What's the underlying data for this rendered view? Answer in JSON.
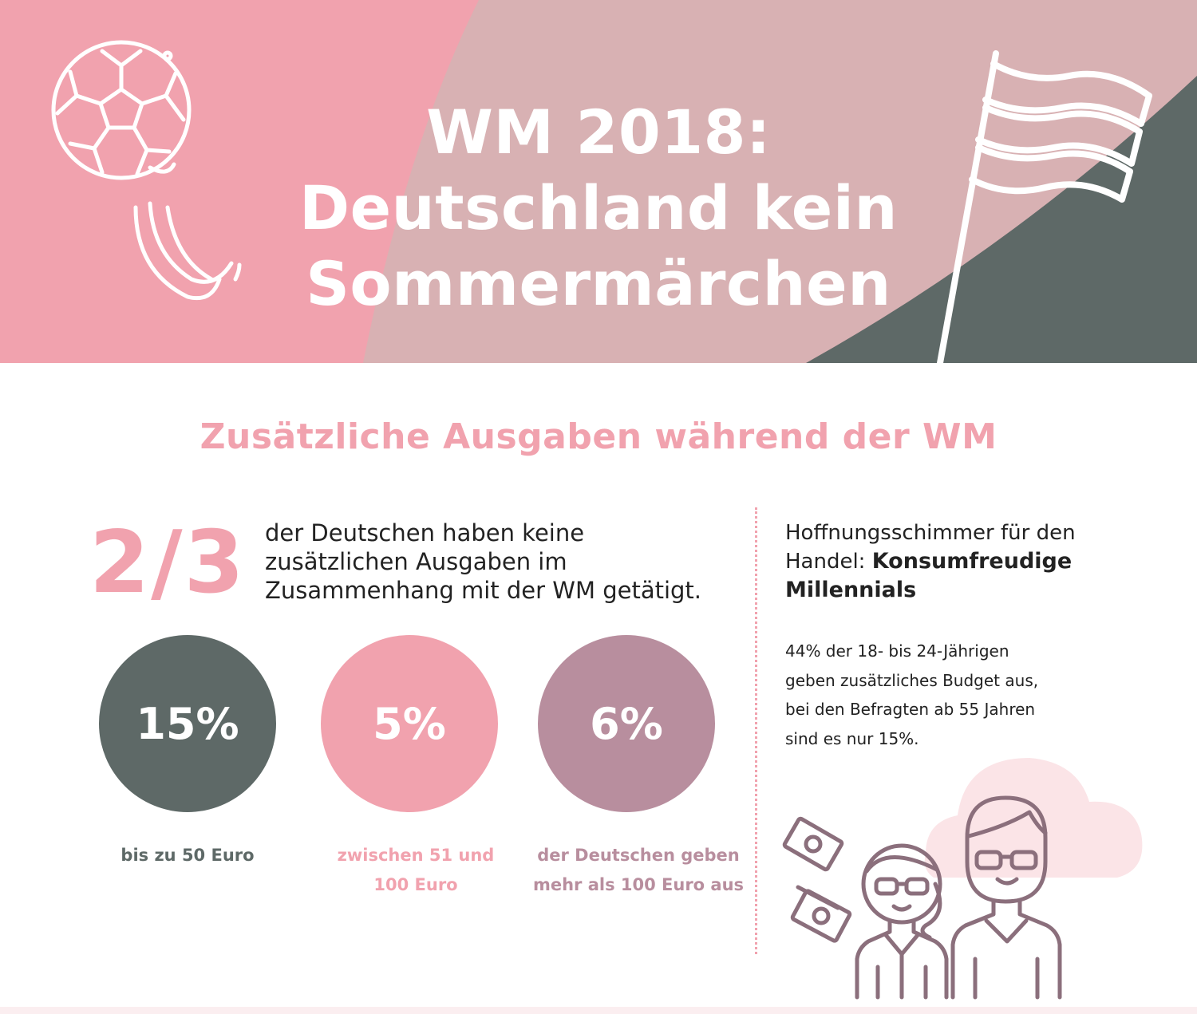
{
  "header": {
    "title_lines": [
      "WM 2018:",
      "Deutschland kein",
      "Sommermärchen"
    ],
    "icons": [
      "football-icon",
      "flag-icon"
    ]
  },
  "section": {
    "title": "Zusätzliche Ausgaben während der WM"
  },
  "summary": {
    "fraction": "2/3",
    "text_lines": [
      "der Deutschen haben keine",
      "zusätzlichen Ausgaben im",
      "Zusammenhang mit der WM getätigt."
    ]
  },
  "stats": [
    {
      "value": "15%",
      "caption_lines": [
        "bis zu 50 Euro"
      ],
      "color": "#5e6967"
    },
    {
      "value": "5%",
      "caption_lines": [
        "zwischen 51 und",
        "100 Euro"
      ],
      "color": "#f1a2ae"
    },
    {
      "value": "6%",
      "caption_lines": [
        "der Deutschen geben",
        "mehr als 100 Euro aus"
      ],
      "color": "#b88e9e"
    }
  ],
  "millennials": {
    "heading_line1": "Hoffnungsschimmer für den",
    "heading_line2_prefix": "Handel: ",
    "heading_line2_strong": "Konsumfreudige",
    "heading_line3_strong": "Millennials",
    "body_lines": [
      "44% der 18- bis 24-Jährigen",
      "geben zusätzliches Budget aus,",
      "bei den Befragten ab 55 Jahren",
      "sind es nur 15%."
    ],
    "icons": [
      "money-bill-icon",
      "woman-sunglasses-icon",
      "man-sunglasses-icon",
      "cloud-icon"
    ]
  },
  "colors": {
    "pink": "#f1a2ae",
    "dusty_pink": "#d8b1b3",
    "slate": "#5e6967",
    "mauve": "#b88e9e",
    "icon_stroke": "#8b6f7c"
  }
}
